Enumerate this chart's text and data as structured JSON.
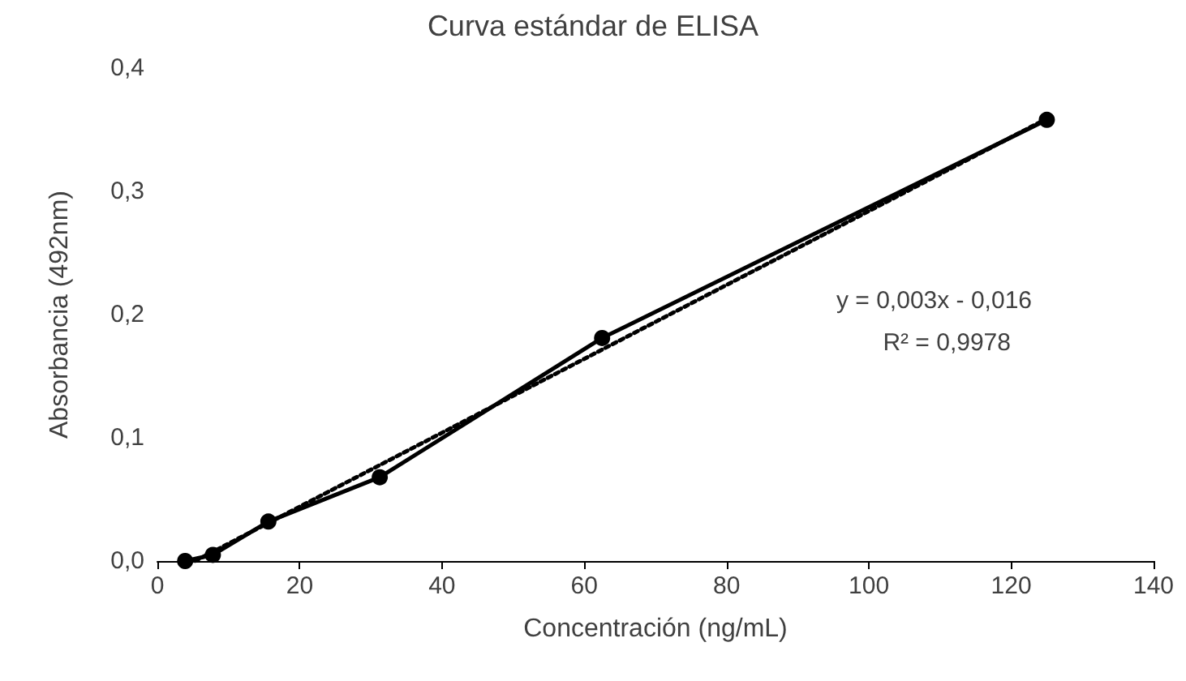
{
  "chart_data": {
    "type": "line",
    "title": "Curva estándar de ELISA",
    "xlabel": "Concentración (ng/mL)",
    "ylabel": "Absorbancia (492nm)",
    "xlim": [
      0,
      140
    ],
    "xticks": [
      0,
      20,
      40,
      60,
      80,
      100,
      120,
      140
    ],
    "ylim": [
      0,
      0.4
    ],
    "yticks": [
      {
        "value": 0,
        "label": "0,0"
      },
      {
        "value": 0.1,
        "label": "0,1"
      },
      {
        "value": 0.2,
        "label": "0,2"
      },
      {
        "value": 0.3,
        "label": "0,3"
      },
      {
        "value": 0.4,
        "label": "0,4"
      }
    ],
    "grid": false,
    "series": [
      {
        "color": "#000000",
        "marker": "circle",
        "line_style": "solid",
        "x": [
          3.9,
          7.8,
          15.6,
          31.25,
          62.5,
          125
        ],
        "values": [
          0,
          0.005,
          0.032,
          0.068,
          0.181,
          0.358
        ]
      },
      {
        "color": "#000000",
        "marker": "none",
        "line_style": "dotted",
        "x": [
          5.3,
          125
        ],
        "values": [
          0,
          0.359
        ]
      }
    ],
    "annotations": [
      "y = 0,003x - 0,016",
      "R² = 0,9978"
    ]
  }
}
